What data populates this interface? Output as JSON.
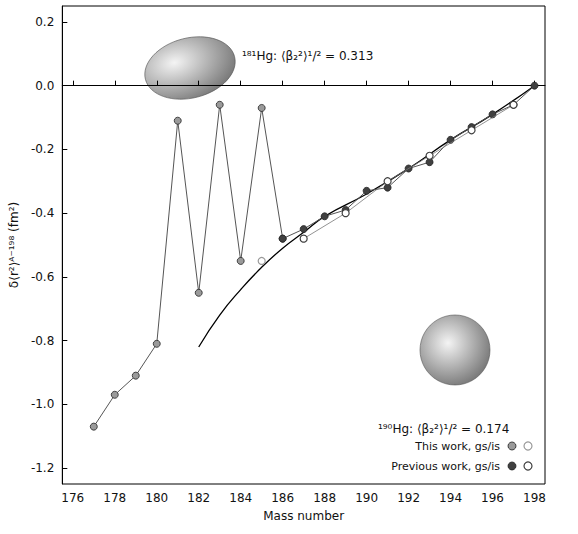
{
  "chart_data": {
    "type": "scatter",
    "x_label": "Mass number",
    "y_label": "δ⟨r²⟩ᴬ⁻¹⁹⁸ (fm²)",
    "xlim": [
      175.5,
      198.5
    ],
    "xticks": [
      176,
      178,
      180,
      182,
      184,
      186,
      188,
      190,
      192,
      194,
      196,
      198
    ],
    "ylim": [
      -1.25,
      0.25
    ],
    "yticks": [
      {
        "value": -1.2,
        "label": "-1.2"
      },
      {
        "value": -1,
        "label": "-1.0"
      },
      {
        "value": -0.8,
        "label": "-0.8"
      },
      {
        "value": -0.6,
        "label": "-0.6"
      },
      {
        "value": -0.4,
        "label": "-0.4"
      },
      {
        "value": -0.2,
        "label": "-0.2"
      },
      {
        "value": 0,
        "label": "0.0"
      },
      {
        "value": 0.2,
        "label": "0.2"
      }
    ],
    "grid": false,
    "legend": "lower right",
    "series": [
      {
        "name": "This work, gs/is",
        "color": "#9a9a9a",
        "marker": "circle",
        "line_style": "solid",
        "x": [
          177,
          178,
          179,
          180,
          181,
          182,
          183,
          184,
          185,
          186
        ],
        "values": [
          -1.07,
          -0.97,
          -0.91,
          -0.81,
          -0.11,
          -0.65,
          -0.06,
          -0.55,
          -0.07,
          -0.48
        ],
        "isomer_x": [
          185
        ],
        "isomer_values": [
          -0.55
        ]
      },
      {
        "name": "Previous work, gs/is",
        "color": "#404040",
        "marker": "circle",
        "line_style": "solid",
        "x": [
          186,
          187,
          188,
          189,
          190,
          191,
          192,
          193,
          194,
          195,
          196,
          197,
          198
        ],
        "values": [
          -0.48,
          -0.45,
          -0.41,
          -0.39,
          -0.33,
          -0.32,
          -0.26,
          -0.24,
          -0.17,
          -0.13,
          -0.09,
          -0.06,
          0.0
        ],
        "isomer_x": [
          187,
          189,
          191,
          193,
          195,
          197
        ],
        "isomer_values": [
          -0.48,
          -0.4,
          -0.3,
          -0.22,
          -0.14,
          -0.06
        ]
      }
    ],
    "curve": {
      "color": "#000000",
      "line_style": "solid",
      "x": [
        182,
        183,
        184,
        185,
        186,
        187,
        188,
        190,
        192,
        194,
        196,
        198
      ],
      "values": [
        -0.82,
        -0.72,
        -0.64,
        -0.57,
        -0.51,
        -0.46,
        -0.41,
        -0.34,
        -0.26,
        -0.17,
        -0.09,
        0.0
      ]
    },
    "annotations": [
      {
        "text": "¹⁸¹Hg: ⟨β₂²⟩¹/² = 0.313"
      },
      {
        "text": "¹⁹⁰Hg: ⟨β₂²⟩¹/² = 0.174"
      }
    ]
  }
}
